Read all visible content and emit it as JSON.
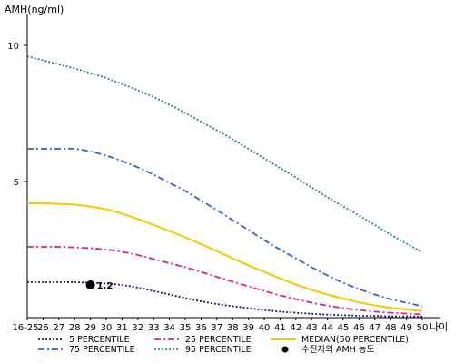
{
  "chart_data": {
    "type": "line",
    "ylabel": "AMH(ng/ml)",
    "xlabel": "나이",
    "categories": [
      "16-25",
      "26",
      "27",
      "28",
      "29",
      "30",
      "31",
      "32",
      "33",
      "34",
      "35",
      "36",
      "37",
      "38",
      "39",
      "40",
      "41",
      "42",
      "43",
      "44",
      "45",
      "46",
      "47",
      "48",
      "49",
      "50"
    ],
    "ylim": [
      0,
      11
    ],
    "yticks": [
      5,
      10
    ],
    "grid": false,
    "legend_position": "bottom",
    "series": [
      {
        "name": "5 PERCENTILE",
        "color": "#1a1a80",
        "style": "dotted",
        "values": [
          1.3,
          1.3,
          1.3,
          1.3,
          1.28,
          1.25,
          1.2,
          1.1,
          0.98,
          0.85,
          0.72,
          0.6,
          0.5,
          0.42,
          0.35,
          0.28,
          0.22,
          0.18,
          0.14,
          0.11,
          0.09,
          0.07,
          0.06,
          0.05,
          0.05,
          0.04
        ]
      },
      {
        "name": "25 PERCENTILE",
        "color": "#e0208a",
        "style": "dashdot",
        "values": [
          2.6,
          2.6,
          2.6,
          2.58,
          2.55,
          2.5,
          2.42,
          2.3,
          2.15,
          2.0,
          1.85,
          1.68,
          1.5,
          1.32,
          1.15,
          0.98,
          0.82,
          0.68,
          0.55,
          0.44,
          0.35,
          0.28,
          0.22,
          0.18,
          0.15,
          0.12
        ]
      },
      {
        "name": "MEDIAN(50 PERCENTILE)",
        "color": "#f5c800",
        "style": "solid",
        "values": [
          4.2,
          4.2,
          4.18,
          4.15,
          4.08,
          3.98,
          3.82,
          3.62,
          3.4,
          3.18,
          2.95,
          2.7,
          2.44,
          2.18,
          1.92,
          1.68,
          1.44,
          1.22,
          1.02,
          0.85,
          0.7,
          0.56,
          0.45,
          0.36,
          0.3,
          0.25
        ]
      },
      {
        "name": "75 PERCENTILE",
        "color": "#3a5fcd",
        "style": "dashdot",
        "values": [
          6.2,
          6.2,
          6.2,
          6.2,
          6.1,
          5.95,
          5.75,
          5.52,
          5.25,
          4.95,
          4.65,
          4.3,
          3.95,
          3.58,
          3.22,
          2.85,
          2.5,
          2.18,
          1.85,
          1.55,
          1.28,
          1.05,
          0.85,
          0.68,
          0.55,
          0.42
        ]
      },
      {
        "name": "95 PERCENTILE",
        "color": "#2e8b57",
        "style": "dotted",
        "values": [
          9.6,
          9.45,
          9.3,
          9.15,
          8.98,
          8.8,
          8.58,
          8.35,
          8.1,
          7.82,
          7.52,
          7.2,
          6.88,
          6.55,
          6.2,
          5.85,
          5.5,
          5.15,
          4.78,
          4.42,
          4.08,
          3.75,
          3.4,
          3.05,
          2.72,
          2.4
        ]
      }
    ],
    "marker": {
      "name": "수진자의 AMH 농도",
      "x": "29",
      "value": 1.2,
      "label": "1.2",
      "color": "#000000"
    },
    "legend_order": [
      "5 PERCENTILE",
      "25 PERCENTILE",
      "MEDIAN(50 PERCENTILE)",
      "75 PERCENTILE",
      "95 PERCENTILE",
      "수진자의 AMH 농도"
    ]
  }
}
